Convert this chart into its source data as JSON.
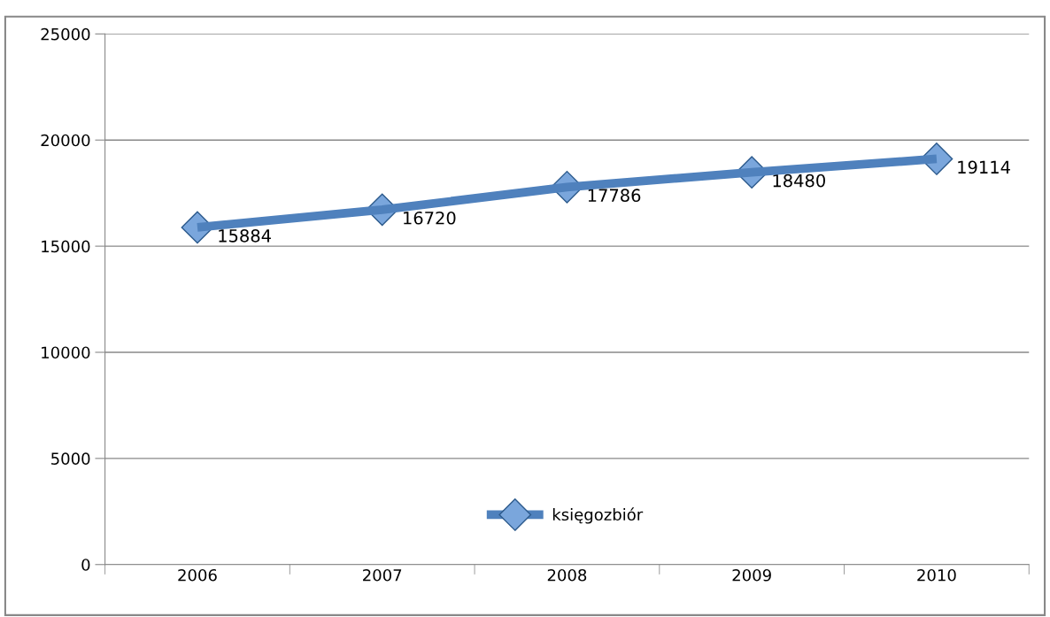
{
  "chart_data": {
    "type": "line",
    "categories": [
      "2006",
      "2007",
      "2008",
      "2009",
      "2010"
    ],
    "series": [
      {
        "name": "księgozbiór",
        "color": "#4f81bd",
        "values": [
          15884,
          16720,
          17786,
          18480,
          19114
        ]
      }
    ],
    "ylim": [
      0,
      25000
    ],
    "yticks": [
      0,
      5000,
      10000,
      15000,
      20000,
      25000
    ],
    "grid": "y",
    "legend": "bottom",
    "marker": "diamond",
    "data_labels": true
  }
}
